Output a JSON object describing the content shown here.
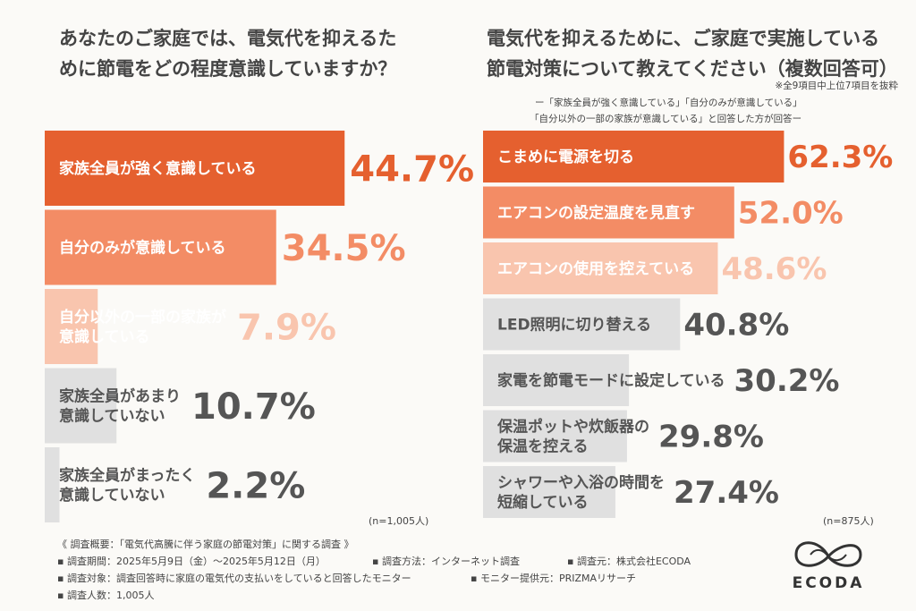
{
  "left_title": "あなたのご家庭では、電気代を抑えるた\nめに節電をどの程度意識していますか？",
  "right_title": "電気代を抑えるために、ご家庭で実施している\n節電対策について教えてください（複数回答可）",
  "excerpt_note": "※全9項目中上位7項目を抜粋",
  "sub_note_line1": "ー「家族全員が強く意識している」「自分のみが意識している」",
  "sub_note_line2": "「自分以外の一部の家族が意識している」と回答した方が回答ー",
  "chart_data": [
    {
      "type": "bar",
      "orientation": "horizontal",
      "title": "あなたのご家庭では、電気代を抑えるために節電をどの程度意識していますか？",
      "categories": [
        "家族全員が強く意識している",
        "自分のみが意識している",
        "自分以外の一部の家族が意識している",
        "家族全員があまり意識していない",
        "家族全員がまったく意識していない"
      ],
      "label_lines": [
        [
          "家族全員が強く意識している"
        ],
        [
          "自分のみが意識している"
        ],
        [
          "自分以外の一部の家族が",
          "意識している"
        ],
        [
          "家族全員があまり",
          "意識していない"
        ],
        [
          "家族全員がまったく",
          "意識していない"
        ]
      ],
      "values": [
        44.7,
        34.5,
        7.9,
        10.7,
        2.2
      ],
      "value_labels": [
        "44.7%",
        "34.5%",
        "7.9%",
        "10.7%",
        "2.2%"
      ],
      "bar_colors": [
        "#e5602f",
        "#f38c65",
        "#f9c5ae",
        "#e0e0e0",
        "#e0e0e0"
      ],
      "label_colors": [
        "#ffffff",
        "#ffffff",
        "#ffffff",
        "#555555",
        "#555555"
      ],
      "pct_colors": [
        "#e5602f",
        "#f38c65",
        "#f9c5ae",
        "#555555",
        "#555555"
      ],
      "n_label": "(n=1,005人)"
    },
    {
      "type": "bar",
      "orientation": "horizontal",
      "title": "電気代を抑えるために、ご家庭で実施している節電対策について教えてください（複数回答可）",
      "categories": [
        "こまめに電源を切る",
        "エアコンの設定温度を見直す",
        "エアコンの使用を控えている",
        "LED照明に切り替える",
        "家電を節電モードに設定している",
        "保温ポットや炊飯器の保温を控える",
        "シャワーや入浴の時間を短縮している"
      ],
      "label_lines": [
        [
          "こまめに電源を切る"
        ],
        [
          "エアコンの設定温度を見直す"
        ],
        [
          "エアコンの使用を控えている"
        ],
        [
          "LED照明に切り替える"
        ],
        [
          "家電を節電モードに設定している"
        ],
        [
          "保温ポットや炊飯器の",
          "保温を控える"
        ],
        [
          "シャワーや入浴の時間を",
          "短縮している"
        ]
      ],
      "values": [
        62.3,
        52.0,
        48.6,
        40.8,
        30.2,
        29.8,
        27.4
      ],
      "value_labels": [
        "62.3%",
        "52.0%",
        "48.6%",
        "40.8%",
        "30.2%",
        "29.8%",
        "27.4%"
      ],
      "bar_colors": [
        "#e5602f",
        "#f38c65",
        "#f9c5ae",
        "#e0e0e0",
        "#e0e0e0",
        "#e0e0e0",
        "#e0e0e0"
      ],
      "label_colors": [
        "#ffffff",
        "#ffffff",
        "#ffffff",
        "#555555",
        "#555555",
        "#555555",
        "#555555"
      ],
      "pct_colors": [
        "#e5602f",
        "#f38c65",
        "#f9c5ae",
        "#555555",
        "#555555",
        "#555555",
        "#555555"
      ],
      "n_label": "(n=875人)"
    }
  ],
  "footer": {
    "heading": "《 調査概要：「電気代高騰に伴う家庭の節電対策」に関する調査 》",
    "period": "▪ 調査期間：2025年5月9日（金）〜2025年5月12日（月）",
    "method": "▪ 調査方法：インターネット調査",
    "source": "▪ 調査元：株式会社ECODA",
    "target": "▪ 調査対象：調査回答時に家庭の電気代の支払いをしていると回答したモニター",
    "provider": "▪ モニター提供元：PRIZMAリサーチ",
    "count": "▪ 調査人数：1,005人"
  },
  "logo_text": "ECODA",
  "logo_icon": "ecoda-leaf-loop-icon"
}
